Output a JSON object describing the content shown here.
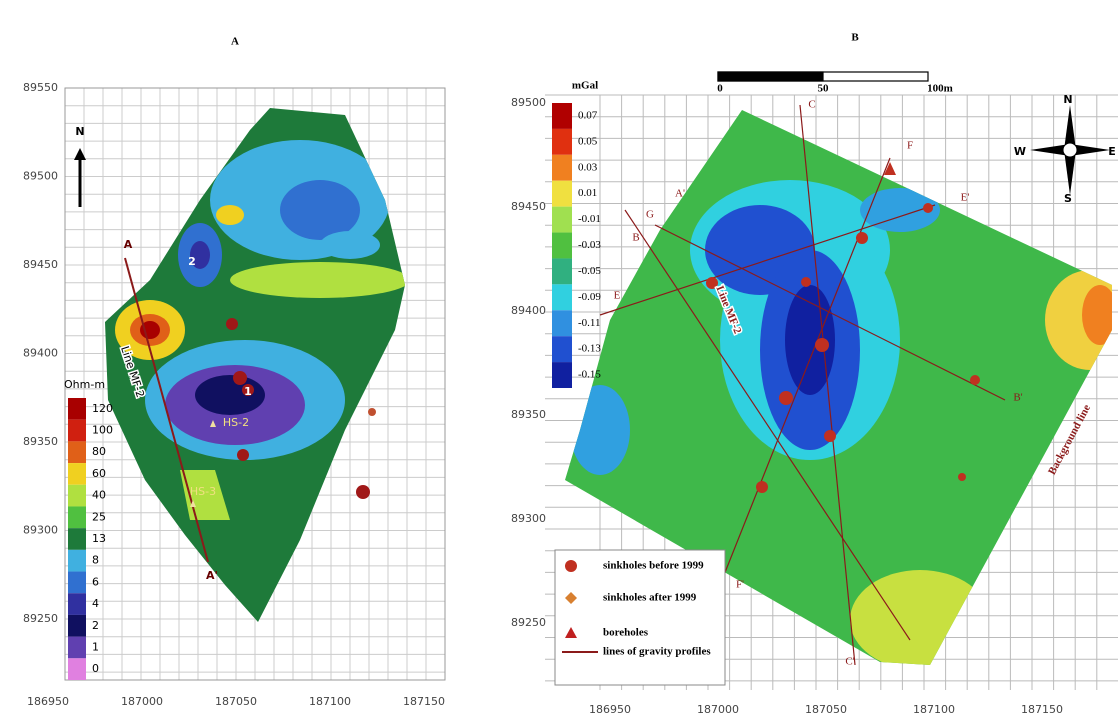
{
  "panel_a": {
    "title": "A",
    "y_ticks": [
      "89550",
      "89500",
      "89450",
      "89400",
      "89350",
      "89300",
      "89250"
    ],
    "x_ticks": [
      "186950",
      "187000",
      "187050",
      "187100",
      "187150"
    ],
    "north": "N",
    "legend": {
      "title": "Ohm-m",
      "items": [
        {
          "label": "120",
          "color": "#a80000"
        },
        {
          "label": "100",
          "color": "#d02010"
        },
        {
          "label": "80",
          "color": "#e06018"
        },
        {
          "label": "60",
          "color": "#f0d020"
        },
        {
          "label": "40",
          "color": "#b0e040"
        },
        {
          "label": "25",
          "color": "#50c040"
        },
        {
          "label": "13",
          "color": "#1e7a3a"
        },
        {
          "label": "8",
          "color": "#40b0e0"
        },
        {
          "label": "6",
          "color": "#3070d0"
        },
        {
          "label": "4",
          "color": "#3030a0"
        },
        {
          "label": "2",
          "color": "#101060"
        },
        {
          "label": "1",
          "color": "#6040b0"
        },
        {
          "label": "0",
          "color": "#e080e0"
        }
      ]
    },
    "annotations": {
      "profile_start": "A",
      "profile_end": "A'",
      "line": "Line MF-2",
      "anomaly_2": "2",
      "anomaly_1": "1",
      "hs2": "HS-2",
      "hs3": "HS-3"
    }
  },
  "panel_b": {
    "title": "B",
    "unit": "mGal",
    "scale": [
      "0",
      "50",
      "100m"
    ],
    "y_ticks": [
      "89500",
      "89450",
      "89400",
      "89350",
      "89300",
      "89250"
    ],
    "x_ticks": [
      "186950",
      "187000",
      "187050",
      "187100",
      "187150"
    ],
    "legend": {
      "items": [
        {
          "label": "0.07",
          "color": "#b00000"
        },
        {
          "label": "0.05",
          "color": "#e03010"
        },
        {
          "label": "0.03",
          "color": "#f08020"
        },
        {
          "label": "0.01",
          "color": "#f0e040"
        },
        {
          "label": "-0.01",
          "color": "#a0e050"
        },
        {
          "label": "-0.03",
          "color": "#50c040"
        },
        {
          "label": "-0.05",
          "color": "#30b080"
        },
        {
          "label": "-0.09",
          "color": "#30d0e0"
        },
        {
          "label": "-0.11",
          "color": "#3090e0"
        },
        {
          "label": "-0.13",
          "color": "#2050d0"
        },
        {
          "label": "-0.15",
          "color": "#1020a0"
        }
      ]
    },
    "compass": {
      "n": "N",
      "e": "E",
      "w": "W",
      "s": "S"
    },
    "profiles": {
      "c_start": "C",
      "c_end": "C'",
      "f_start": "F",
      "f_end": "F'",
      "e_start": "E",
      "e_end": "E'",
      "a": "A'",
      "g": "G",
      "b": "B",
      "b_end": "B'"
    },
    "line_label": "Line MF-2",
    "background_label": "Background line",
    "key": {
      "before": "sinkholes before 1999",
      "after": "sinkholes after 1999",
      "boreholes": "boreholes",
      "lines": "lines of gravity profiles"
    }
  }
}
